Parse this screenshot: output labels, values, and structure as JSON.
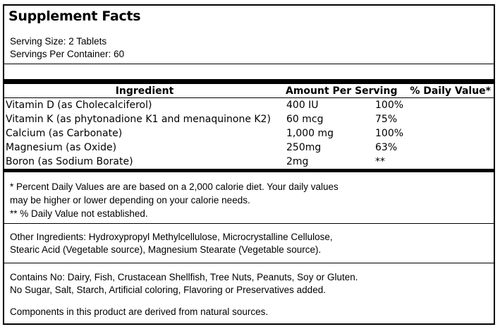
{
  "label": {
    "title": "Supplement Facts",
    "serving_size": "Serving Size: 2 Tablets",
    "servings_per_container": "Servings Per Container: 60"
  },
  "table": {
    "headers": {
      "ingredient": "Ingredient",
      "amount": "Amount Per Serving",
      "daily_value": "% Daily Value*"
    },
    "rows": [
      {
        "ingredient": "Vitamin D (as Cholecalciferol)",
        "amount": "400 IU",
        "daily_value": "100%"
      },
      {
        "ingredient": "Vitamin K (as phytonadione K1 and menaquinone K2)",
        "amount": "60 mcg",
        "daily_value": "75%"
      },
      {
        "ingredient": "Calcium (as Carbonate)",
        "amount": "1,000 mg",
        "daily_value": "100%"
      },
      {
        "ingredient": "Magnesium (as Oxide)",
        "amount": "250mg",
        "daily_value": "63%"
      },
      {
        "ingredient": "Boron (as Sodium Borate)",
        "amount": "2mg",
        "daily_value": "**"
      }
    ]
  },
  "footnotes": {
    "daily_value_line1": "* Percent Daily Values are are based on a 2,000 calorie diet. Your daily values",
    "daily_value_line2": "may be higher or lower depending on your calorie needs.",
    "not_established": "** % Daily Value not established."
  },
  "other_ingredients": {
    "line1": "Other Ingredients: Hydroxypropyl Methylcellulose, Microcrystalline Cellulose,",
    "line2": "Stearic Acid (Vegetable source), Magnesium Stearate (Vegetable source)."
  },
  "allergen_info": {
    "line1": "Contains No: Dairy, Fish, Crustacean Shellfish, Tree Nuts, Peanuts, Soy or Gluten.",
    "line2": "No Sugar, Salt, Starch, Artificial coloring, Flavoring or Preservatives added."
  },
  "natural_sources_note": "Components in this product are derived from natural sources.",
  "colors": {
    "border": "#000000",
    "background": "#ffffff",
    "text": "#000000"
  }
}
